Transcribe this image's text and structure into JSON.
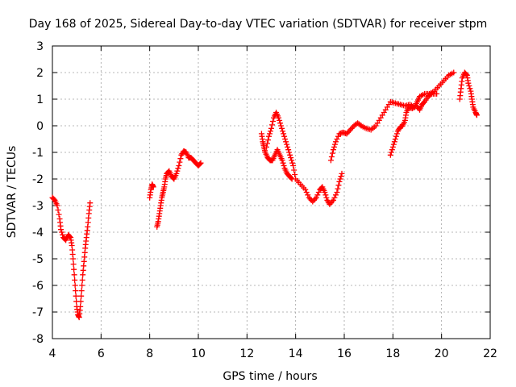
{
  "chart_data": {
    "type": "scatter",
    "title": "Day 168 of 2025, Sidereal Day-to-day VTEC variation (SDTVAR) for receiver stpm",
    "xlabel": "GPS time / hours",
    "ylabel": "SDTVAR / TECUs",
    "xlim": [
      4,
      22
    ],
    "ylim": [
      -8,
      3
    ],
    "xticks": [
      4,
      6,
      8,
      10,
      12,
      14,
      16,
      18,
      20,
      22
    ],
    "yticks": [
      3,
      2,
      1,
      0,
      -1,
      -2,
      -3,
      -4,
      -5,
      -6,
      -7,
      -8
    ],
    "grid": true,
    "marker": "+",
    "color": "#ff0000",
    "series": [
      {
        "values": [
          [
            4.0,
            -2.7
          ],
          [
            4.1,
            -2.8
          ],
          [
            4.2,
            -3.0
          ],
          [
            4.3,
            -3.5
          ],
          [
            4.35,
            -3.9
          ],
          [
            4.45,
            -4.2
          ],
          [
            4.55,
            -4.3
          ],
          [
            4.65,
            -4.1
          ],
          [
            4.75,
            -4.2
          ],
          [
            4.8,
            -4.5
          ],
          [
            4.85,
            -5.0
          ],
          [
            4.9,
            -5.6
          ],
          [
            4.95,
            -6.2
          ],
          [
            5.0,
            -6.8
          ],
          [
            5.05,
            -7.1
          ],
          [
            5.1,
            -7.2
          ],
          [
            5.15,
            -6.8
          ],
          [
            5.2,
            -6.2
          ],
          [
            5.25,
            -5.6
          ],
          [
            5.3,
            -5.1
          ],
          [
            5.35,
            -4.6
          ],
          [
            5.4,
            -4.2
          ],
          [
            5.45,
            -3.8
          ],
          [
            5.5,
            -3.3
          ],
          [
            5.55,
            -2.9
          ]
        ]
      },
      {
        "values": [
          [
            8.0,
            -2.7
          ],
          [
            8.05,
            -2.4
          ],
          [
            8.1,
            -2.2
          ],
          [
            8.15,
            -2.3
          ]
        ]
      },
      {
        "values": [
          [
            8.3,
            -3.8
          ],
          [
            8.35,
            -3.6
          ],
          [
            8.4,
            -3.3
          ],
          [
            8.45,
            -3.0
          ],
          [
            8.5,
            -2.7
          ],
          [
            8.55,
            -2.5
          ],
          [
            8.6,
            -2.3
          ],
          [
            8.65,
            -2.0
          ],
          [
            8.7,
            -1.8
          ],
          [
            8.8,
            -1.7
          ],
          [
            8.9,
            -1.9
          ],
          [
            9.0,
            -2.0
          ],
          [
            9.1,
            -1.8
          ],
          [
            9.2,
            -1.5
          ],
          [
            9.3,
            -1.1
          ],
          [
            9.4,
            -0.95
          ],
          [
            9.5,
            -1.0
          ],
          [
            9.6,
            -1.2
          ],
          [
            9.7,
            -1.2
          ],
          [
            9.8,
            -1.3
          ],
          [
            9.9,
            -1.4
          ],
          [
            10.0,
            -1.5
          ],
          [
            10.1,
            -1.4
          ]
        ]
      },
      {
        "values": [
          [
            12.6,
            -0.3
          ],
          [
            12.65,
            -0.6
          ],
          [
            12.7,
            -0.8
          ],
          [
            12.75,
            -1.0
          ],
          [
            12.85,
            -1.2
          ],
          [
            12.95,
            -1.3
          ],
          [
            13.05,
            -1.3
          ],
          [
            13.15,
            -1.1
          ],
          [
            13.25,
            -0.9
          ],
          [
            13.35,
            -1.1
          ],
          [
            13.45,
            -1.3
          ],
          [
            13.55,
            -1.6
          ],
          [
            13.65,
            -1.8
          ],
          [
            13.75,
            -1.9
          ],
          [
            13.85,
            -2.0
          ]
        ]
      },
      {
        "values": [
          [
            12.8,
            -0.8
          ],
          [
            12.9,
            -0.4
          ],
          [
            13.0,
            -0.1
          ],
          [
            13.1,
            0.3
          ],
          [
            13.2,
            0.5
          ],
          [
            13.3,
            0.3
          ],
          [
            13.4,
            0.0
          ],
          [
            13.5,
            -0.3
          ],
          [
            13.6,
            -0.6
          ],
          [
            13.7,
            -0.9
          ],
          [
            13.8,
            -1.2
          ],
          [
            13.9,
            -1.5
          ],
          [
            14.0,
            -2.0
          ],
          [
            14.2,
            -2.2
          ],
          [
            14.4,
            -2.4
          ],
          [
            14.55,
            -2.7
          ],
          [
            14.7,
            -2.85
          ],
          [
            14.85,
            -2.7
          ],
          [
            15.0,
            -2.4
          ],
          [
            15.1,
            -2.3
          ],
          [
            15.2,
            -2.5
          ],
          [
            15.3,
            -2.8
          ],
          [
            15.4,
            -2.95
          ],
          [
            15.55,
            -2.8
          ],
          [
            15.7,
            -2.5
          ],
          [
            15.8,
            -2.1
          ],
          [
            15.9,
            -1.8
          ]
        ]
      },
      {
        "values": [
          [
            15.45,
            -1.3
          ],
          [
            15.55,
            -0.9
          ],
          [
            15.65,
            -0.6
          ],
          [
            15.8,
            -0.3
          ],
          [
            15.95,
            -0.25
          ],
          [
            16.1,
            -0.3
          ],
          [
            16.25,
            -0.15
          ],
          [
            16.4,
            0.0
          ],
          [
            16.55,
            0.1
          ],
          [
            16.7,
            0.0
          ],
          [
            16.9,
            -0.1
          ],
          [
            17.1,
            -0.15
          ],
          [
            17.3,
            0.0
          ],
          [
            17.5,
            0.3
          ],
          [
            17.7,
            0.6
          ],
          [
            17.9,
            0.9
          ],
          [
            18.1,
            0.85
          ],
          [
            18.3,
            0.8
          ],
          [
            18.5,
            0.75
          ],
          [
            18.7,
            0.8
          ],
          [
            18.9,
            0.7
          ],
          [
            19.0,
            0.9
          ],
          [
            19.1,
            1.1
          ],
          [
            19.3,
            1.2
          ],
          [
            19.5,
            1.2
          ],
          [
            19.7,
            1.3
          ],
          [
            19.9,
            1.5
          ],
          [
            20.1,
            1.7
          ],
          [
            20.3,
            1.9
          ],
          [
            20.5,
            2.0
          ]
        ]
      },
      {
        "values": [
          [
            17.9,
            -1.1
          ],
          [
            18.0,
            -0.8
          ],
          [
            18.1,
            -0.5
          ],
          [
            18.2,
            -0.2
          ],
          [
            18.3,
            -0.05
          ],
          [
            18.4,
            0.0
          ],
          [
            18.5,
            0.2
          ],
          [
            18.55,
            0.5
          ],
          [
            18.65,
            0.7
          ],
          [
            18.8,
            0.65
          ],
          [
            18.95,
            0.75
          ],
          [
            19.1,
            0.6
          ],
          [
            19.2,
            0.8
          ],
          [
            19.3,
            0.9
          ],
          [
            19.45,
            1.1
          ],
          [
            19.6,
            1.2
          ],
          [
            19.8,
            1.2
          ]
        ]
      },
      {
        "values": [
          [
            20.75,
            1.0
          ],
          [
            20.8,
            1.4
          ],
          [
            20.85,
            1.8
          ],
          [
            20.95,
            2.0
          ],
          [
            21.05,
            1.9
          ],
          [
            21.1,
            1.6
          ],
          [
            21.2,
            1.3
          ],
          [
            21.25,
            1.0
          ],
          [
            21.3,
            0.7
          ],
          [
            21.4,
            0.5
          ],
          [
            21.45,
            0.4
          ]
        ]
      }
    ]
  }
}
